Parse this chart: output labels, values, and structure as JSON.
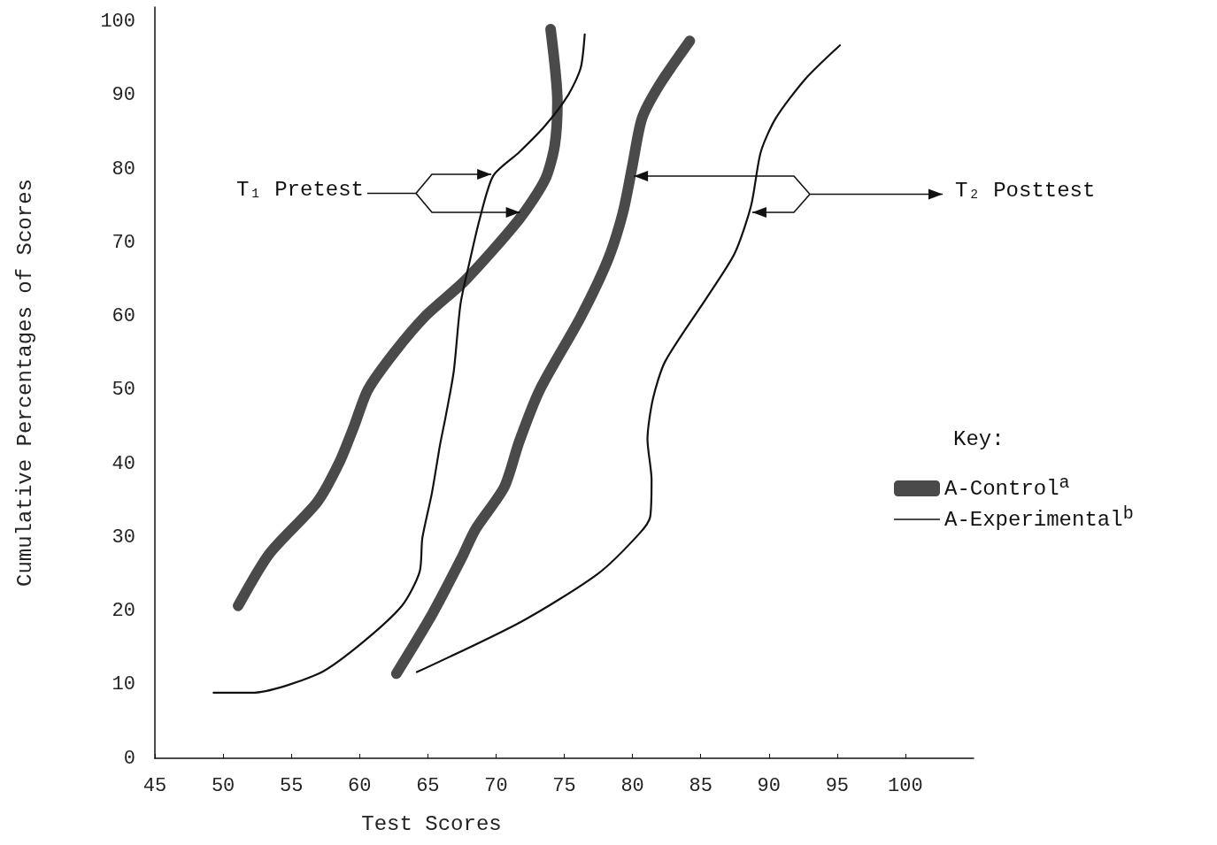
{
  "chart_data": {
    "type": "line",
    "xlabel": "Test Scores",
    "ylabel": "Cumulative Percentages of Scores",
    "legend_title": "Key:",
    "xlim": [
      45,
      105
    ],
    "ylim": [
      0,
      102
    ],
    "xticks": [
      45,
      50,
      55,
      60,
      65,
      70,
      75,
      80,
      85,
      90,
      95,
      100
    ],
    "yticks": [
      0,
      10,
      20,
      30,
      40,
      50,
      60,
      70,
      80,
      90,
      100
    ],
    "grid": false,
    "legend": "right",
    "marker": "none",
    "line_style": "solid",
    "annotations": [
      "T₁ Pretest",
      "T₂ Posttest"
    ],
    "series": [
      {
        "name": "A-Control$^{a}$",
        "color": "#4a4a4a",
        "x": [
          51.1,
          53.4,
          56.9,
          58.5,
          59.6,
          60.6,
          62.5,
          64.8,
          67.8,
          71.7,
          73.6,
          74.3,
          74.5,
          74
        ],
        "values": [
          20.7,
          27.8,
          34.8,
          40.1,
          45.1,
          50,
          55,
          60,
          65,
          73.2,
          78.6,
          83.2,
          89.1,
          99
        ]
      },
      {
        "name": "A-Experimental$^{b}$",
        "color": "#111111",
        "x": [
          49.3,
          52.1,
          56.9,
          59.8,
          63.1,
          64.4,
          64.6,
          65.3,
          65.9,
          66.3,
          66.9,
          67.4,
          68.1,
          68.8,
          69.8,
          71.7,
          73.6,
          75.3,
          76.2,
          76.5
        ],
        "values": [
          8.9,
          8.9,
          11.4,
          15.1,
          20.7,
          25.3,
          29.9,
          36,
          42.6,
          46.3,
          52.5,
          61.7,
          67.7,
          73.2,
          79.1,
          82.3,
          85.9,
          90.1,
          93.7,
          98.3
        ]
      },
      {
        "color": "#4a4a4a",
        "x": [
          62.7,
          65.3,
          67.4,
          68.5,
          70.6,
          71.7,
          73.2,
          76.2,
          78.2,
          79.3,
          80,
          80.7,
          82,
          84.2
        ],
        "values": [
          11.5,
          19.5,
          26.9,
          31.1,
          36.8,
          43,
          50,
          59.9,
          67.7,
          74.1,
          80.5,
          86.9,
          91.5,
          97.4
        ]
      },
      {
        "color": "#111111",
        "x": [
          64.2,
          71.9,
          77.5,
          80.5,
          81.3,
          81.4,
          81.1,
          81.5,
          82.4,
          85.5,
          87.5,
          88.7,
          89.4,
          90.5,
          92.7,
          95.2
        ],
        "values": [
          11.7,
          18.6,
          25.1,
          30.5,
          32.8,
          37.8,
          43.3,
          48.8,
          53.9,
          62.7,
          68.6,
          75.1,
          82.3,
          86.9,
          92.3,
          96.8
        ]
      }
    ]
  }
}
